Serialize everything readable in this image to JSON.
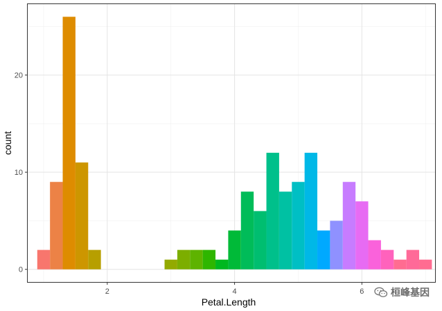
{
  "chart_data": {
    "type": "bar",
    "subtype": "histogram",
    "title": "",
    "xlabel": "Petal.Length",
    "ylabel": "count",
    "xlim": [
      0.75,
      7.15
    ],
    "ylim": [
      -1.3,
      27.3
    ],
    "x_ticks": [
      2,
      4,
      6
    ],
    "y_ticks": [
      0,
      10,
      20
    ],
    "grid": true,
    "legend": "none",
    "bin_width": 0.2,
    "bins": [
      {
        "x0": 0.9,
        "x1": 1.1,
        "count": 2,
        "color": "#F8766D"
      },
      {
        "x0": 1.1,
        "x1": 1.3,
        "count": 9,
        "color": "#EC8246"
      },
      {
        "x0": 1.3,
        "x1": 1.5,
        "count": 26,
        "color": "#DE8C00"
      },
      {
        "x0": 1.5,
        "x1": 1.7,
        "count": 11,
        "color": "#CD9600"
      },
      {
        "x0": 1.7,
        "x1": 1.9,
        "count": 2,
        "color": "#B79F00"
      },
      {
        "x0": 1.9,
        "x1": 2.1,
        "count": 0,
        "color": "#A3A500"
      },
      {
        "x0": 2.1,
        "x1": 2.3,
        "count": 0,
        "color": "#A3A500"
      },
      {
        "x0": 2.3,
        "x1": 2.5,
        "count": 0,
        "color": "#A3A500"
      },
      {
        "x0": 2.5,
        "x1": 2.7,
        "count": 0,
        "color": "#A3A500"
      },
      {
        "x0": 2.7,
        "x1": 2.9,
        "count": 0,
        "color": "#A3A500"
      },
      {
        "x0": 2.9,
        "x1": 3.1,
        "count": 1,
        "color": "#93AA00"
      },
      {
        "x0": 3.1,
        "x1": 3.3,
        "count": 2,
        "color": "#7CAE00"
      },
      {
        "x0": 3.3,
        "x1": 3.5,
        "count": 2,
        "color": "#5EB300"
      },
      {
        "x0": 3.5,
        "x1": 3.7,
        "count": 2,
        "color": "#2EB600"
      },
      {
        "x0": 3.7,
        "x1": 3.9,
        "count": 1,
        "color": "#00B81F"
      },
      {
        "x0": 3.9,
        "x1": 4.1,
        "count": 4,
        "color": "#00BA38"
      },
      {
        "x0": 4.1,
        "x1": 4.3,
        "count": 8,
        "color": "#00BC59"
      },
      {
        "x0": 4.3,
        "x1": 4.5,
        "count": 6,
        "color": "#00BE70"
      },
      {
        "x0": 4.5,
        "x1": 4.7,
        "count": 12,
        "color": "#00C08B"
      },
      {
        "x0": 4.7,
        "x1": 4.9,
        "count": 8,
        "color": "#00C1A3"
      },
      {
        "x0": 4.9,
        "x1": 5.1,
        "count": 9,
        "color": "#00BFC4"
      },
      {
        "x0": 5.1,
        "x1": 5.3,
        "count": 12,
        "color": "#00B8E7"
      },
      {
        "x0": 5.3,
        "x1": 5.5,
        "count": 4,
        "color": "#00A9FF"
      },
      {
        "x0": 5.5,
        "x1": 5.7,
        "count": 5,
        "color": "#8F91FF"
      },
      {
        "x0": 5.7,
        "x1": 5.9,
        "count": 9,
        "color": "#C77CFF"
      },
      {
        "x0": 5.9,
        "x1": 6.1,
        "count": 7,
        "color": "#E76BF3"
      },
      {
        "x0": 6.1,
        "x1": 6.3,
        "count": 3,
        "color": "#FA62DB"
      },
      {
        "x0": 6.3,
        "x1": 6.5,
        "count": 2,
        "color": "#FF62BC"
      },
      {
        "x0": 6.5,
        "x1": 6.7,
        "count": 1,
        "color": "#FF6C91"
      },
      {
        "x0": 6.7,
        "x1": 6.9,
        "count": 2,
        "color": "#FF6A98"
      },
      {
        "x0": 6.9,
        "x1": 7.1,
        "count": 1,
        "color": "#FF6C91"
      }
    ]
  },
  "watermark": {
    "text": "桓峰基因",
    "icon": "wechat-icon"
  }
}
